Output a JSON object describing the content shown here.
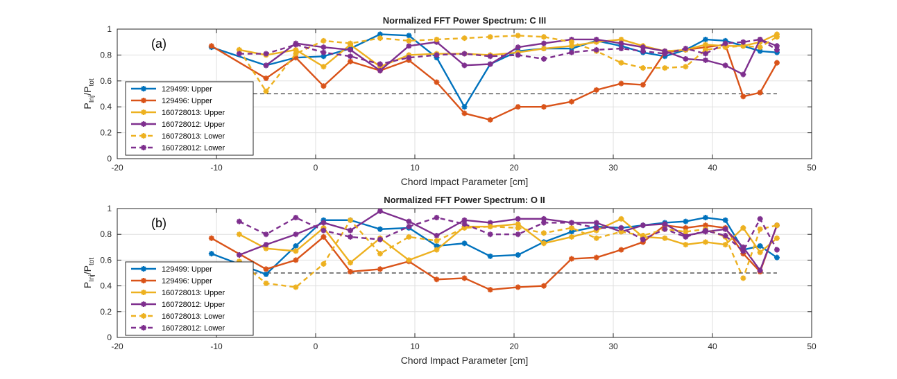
{
  "colors": {
    "blue": "#0072BD",
    "orange": "#D95319",
    "yellow": "#EDB120",
    "purple": "#7E2F8E",
    "grid": "#DFDFDF",
    "axes": "#262626"
  },
  "chart_data": [
    {
      "type": "line",
      "title": "Normalized FFT Power Spectrum: C III",
      "panel_label": "(a)",
      "xlabel": "Chord Impact Parameter [cm]",
      "ylabel_main": "P",
      "ylabel_sub1": "Inj",
      "ylabel_slash": "/P",
      "ylabel_sub2": "tot",
      "xlim": [
        -20,
        50
      ],
      "ylim": [
        0,
        1
      ],
      "xticks": [
        "-20",
        "-10",
        "0",
        "10",
        "20",
        "30",
        "40",
        "50"
      ],
      "yticks": [
        "0",
        "0.2",
        "0.4",
        "0.6",
        "0.8",
        "1"
      ],
      "grid": true,
      "legend_position": "bottom-left",
      "reference_line": {
        "y": 0.5,
        "x": [
          -10.5,
          46.5
        ],
        "style": "dashed"
      },
      "series": [
        {
          "name": "129499: Upper",
          "color_key": "blue",
          "dash": false,
          "x": [
            -10.5,
            -5,
            -2,
            0.8,
            3.5,
            6.5,
            9.4,
            12.2,
            15,
            17.6,
            20.4,
            23,
            25.8,
            28.3,
            30.8,
            33,
            35.2,
            37.3,
            39.3,
            41.3,
            43.1,
            44.8,
            46.5
          ],
          "y": [
            0.86,
            0.72,
            0.78,
            0.79,
            0.85,
            0.96,
            0.95,
            0.78,
            0.4,
            0.73,
            0.83,
            0.85,
            0.85,
            0.91,
            0.87,
            0.82,
            0.79,
            0.84,
            0.92,
            0.91,
            0.87,
            0.83,
            0.82
          ]
        },
        {
          "name": "129496: Upper",
          "color_key": "orange",
          "dash": false,
          "x": [
            -10.5,
            -5,
            -2,
            0.8,
            3.5,
            6.5,
            9.4,
            12.2,
            15,
            17.6,
            20.4,
            23,
            25.8,
            28.3,
            30.8,
            33,
            35.2,
            37.3,
            39.3,
            41.3,
            43.1,
            44.8,
            46.5
          ],
          "y": [
            0.87,
            0.62,
            0.78,
            0.56,
            0.75,
            0.68,
            0.76,
            0.59,
            0.35,
            0.3,
            0.4,
            0.4,
            0.44,
            0.53,
            0.58,
            0.57,
            0.82,
            0.84,
            0.86,
            0.88,
            0.48,
            0.51,
            0.74
          ]
        },
        {
          "name": "160728013: Upper",
          "color_key": "yellow",
          "dash": false,
          "x": [
            -7.7,
            -5,
            -2,
            0.8,
            3.5,
            6.5,
            9.4,
            12.2,
            15,
            17.6,
            20.4,
            23,
            25.8,
            28.3,
            30.8,
            33,
            35.2,
            37.3,
            39.3,
            41.3,
            43.1,
            44.8,
            46.5
          ],
          "y": [
            0.84,
            0.8,
            0.84,
            0.71,
            0.88,
            0.71,
            0.8,
            0.81,
            0.81,
            0.8,
            0.82,
            0.85,
            0.87,
            0.9,
            0.92,
            0.87,
            0.83,
            0.84,
            0.88,
            0.87,
            0.87,
            0.9,
            0.96
          ]
        },
        {
          "name": "160728012: Upper",
          "color_key": "purple",
          "dash": false,
          "x": [
            -5,
            -2,
            0.8,
            3.5,
            6.5,
            9.4,
            12.2,
            15,
            17.6,
            20.4,
            23,
            25.8,
            28.3,
            30.8,
            33,
            35.2,
            37.3,
            39.3,
            41.3,
            43.1,
            44.8,
            46.5
          ],
          "y": [
            0.72,
            0.89,
            0.86,
            0.84,
            0.68,
            0.87,
            0.9,
            0.72,
            0.73,
            0.86,
            0.89,
            0.92,
            0.92,
            0.89,
            0.86,
            0.83,
            0.77,
            0.76,
            0.72,
            0.65,
            0.92,
            0.87
          ]
        },
        {
          "name": "160728013: Lower",
          "color_key": "yellow",
          "dash": true,
          "x": [
            -7.7,
            -5,
            -2,
            0.8,
            3.5,
            6.5,
            9.4,
            12.2,
            15,
            17.6,
            20.4,
            23,
            25.8,
            28.3,
            30.8,
            33,
            35.2,
            37.3,
            39.3,
            41.3,
            43.1,
            44.8,
            46.5
          ],
          "y": [
            0.84,
            0.52,
            0.81,
            0.91,
            0.89,
            0.93,
            0.91,
            0.92,
            0.93,
            0.94,
            0.95,
            0.94,
            0.9,
            0.83,
            0.74,
            0.7,
            0.7,
            0.71,
            0.84,
            0.86,
            0.87,
            0.86,
            0.94
          ]
        },
        {
          "name": "160728012: Lower",
          "color_key": "purple",
          "dash": true,
          "x": [
            -7.7,
            -5,
            -2,
            0.8,
            3.5,
            6.5,
            9.4,
            12.2,
            15,
            17.6,
            20.4,
            23,
            25.8,
            28.3,
            30.8,
            33,
            35.2,
            37.3,
            39.3,
            41.3,
            43.1,
            44.8,
            46.5
          ],
          "y": [
            0.81,
            0.81,
            0.88,
            0.82,
            0.79,
            0.73,
            0.78,
            0.8,
            0.81,
            0.79,
            0.8,
            0.77,
            0.82,
            0.84,
            0.85,
            0.83,
            0.81,
            0.85,
            0.81,
            0.89,
            0.9,
            0.92,
            0.84
          ]
        }
      ]
    },
    {
      "type": "line",
      "title": "Normalized FFT Power Spectrum: O II",
      "panel_label": "(b)",
      "xlabel": "Chord Impact Parameter [cm]",
      "ylabel_main": "P",
      "ylabel_sub1": "Inj",
      "ylabel_slash": "/P",
      "ylabel_sub2": "tot",
      "xlim": [
        -20,
        50
      ],
      "ylim": [
        0,
        1
      ],
      "xticks": [
        "-20",
        "-10",
        "0",
        "10",
        "20",
        "30",
        "40",
        "50"
      ],
      "yticks": [
        "0",
        "0.2",
        "0.4",
        "0.6",
        "0.8",
        "1"
      ],
      "grid": true,
      "legend_position": "bottom-left",
      "reference_line": {
        "y": 0.5,
        "x": [
          -10.5,
          46.5
        ],
        "style": "dashed"
      },
      "series": [
        {
          "name": "129499: Upper",
          "color_key": "blue",
          "dash": false,
          "x": [
            -10.5,
            -5,
            -2,
            0.8,
            3.5,
            6.5,
            9.4,
            12.2,
            15,
            17.6,
            20.4,
            23,
            25.8,
            28.3,
            30.8,
            33,
            35.2,
            37.3,
            39.3,
            41.3,
            43.1,
            44.8,
            46.5
          ],
          "y": [
            0.65,
            0.49,
            0.71,
            0.91,
            0.91,
            0.84,
            0.85,
            0.71,
            0.73,
            0.63,
            0.64,
            0.74,
            0.82,
            0.86,
            0.85,
            0.87,
            0.89,
            0.9,
            0.93,
            0.91,
            0.68,
            0.71,
            0.62
          ]
        },
        {
          "name": "129496: Upper",
          "color_key": "orange",
          "dash": false,
          "x": [
            -10.5,
            -5,
            -2,
            0.8,
            3.5,
            6.5,
            9.4,
            12.2,
            15,
            17.6,
            20.4,
            23,
            25.8,
            28.3,
            30.8,
            33,
            35.2,
            37.3,
            39.3,
            41.3,
            43.1,
            44.8,
            46.5
          ],
          "y": [
            0.77,
            0.53,
            0.6,
            0.78,
            0.51,
            0.53,
            0.59,
            0.45,
            0.46,
            0.37,
            0.39,
            0.4,
            0.61,
            0.62,
            0.68,
            0.74,
            0.87,
            0.85,
            0.87,
            0.85,
            0.65,
            0.51,
            0.87
          ]
        },
        {
          "name": "160728013: Upper",
          "color_key": "yellow",
          "dash": false,
          "x": [
            -7.7,
            -5,
            -2,
            0.8,
            3.5,
            6.5,
            9.4,
            12.2,
            15,
            17.6,
            20.4,
            23,
            25.8,
            28.3,
            30.8,
            33,
            35.2,
            37.3,
            39.3,
            41.3,
            43.1,
            44.8,
            46.5
          ],
          "y": [
            0.8,
            0.69,
            0.67,
            0.85,
            0.58,
            0.77,
            0.6,
            0.68,
            0.86,
            0.86,
            0.88,
            0.73,
            0.78,
            0.83,
            0.92,
            0.78,
            0.77,
            0.72,
            0.74,
            0.72,
            0.85,
            0.66,
            0.77
          ]
        },
        {
          "name": "160728012: Upper",
          "color_key": "purple",
          "dash": false,
          "x": [
            -7.7,
            -5,
            -2,
            0.8,
            3.5,
            6.5,
            9.4,
            12.2,
            15,
            17.6,
            20.4,
            23,
            25.8,
            28.3,
            30.8,
            33,
            35.2,
            37.3,
            39.3,
            41.3,
            43.1,
            44.8,
            46.5
          ],
          "y": [
            0.64,
            0.72,
            0.8,
            0.89,
            0.83,
            0.98,
            0.9,
            0.79,
            0.91,
            0.89,
            0.92,
            0.92,
            0.89,
            0.89,
            0.82,
            0.87,
            0.88,
            0.79,
            0.82,
            0.84,
            0.7,
            0.52,
            0.87
          ]
        },
        {
          "name": "160728013: Lower",
          "color_key": "yellow",
          "dash": true,
          "x": [
            -7.7,
            -5,
            -2,
            0.8,
            3.5,
            6.5,
            9.4,
            12.2,
            15,
            17.6,
            20.4,
            23,
            25.8,
            28.3,
            30.8,
            33,
            35.2,
            37.3,
            39.3,
            41.3,
            43.1,
            44.8,
            46.5
          ],
          "y": [
            0.59,
            0.42,
            0.39,
            0.57,
            0.91,
            0.65,
            0.78,
            0.75,
            0.85,
            0.86,
            0.85,
            0.81,
            0.85,
            0.77,
            0.82,
            0.79,
            0.84,
            0.82,
            0.84,
            0.78,
            0.46,
            0.84,
            0.87
          ]
        },
        {
          "name": "160728012: Lower",
          "color_key": "purple",
          "dash": true,
          "x": [
            -7.7,
            -5,
            -2,
            0.8,
            3.5,
            6.5,
            9.4,
            12.2,
            15,
            17.6,
            20.4,
            23,
            25.8,
            28.3,
            30.8,
            33,
            35.2,
            37.3,
            39.3,
            41.3,
            43.1,
            44.8,
            46.5
          ],
          "y": [
            0.9,
            0.8,
            0.93,
            0.83,
            0.78,
            0.76,
            0.86,
            0.93,
            0.88,
            0.8,
            0.8,
            0.89,
            0.89,
            0.85,
            0.85,
            0.76,
            0.84,
            0.78,
            0.83,
            0.79,
            0.67,
            0.92,
            0.68
          ]
        }
      ]
    }
  ]
}
